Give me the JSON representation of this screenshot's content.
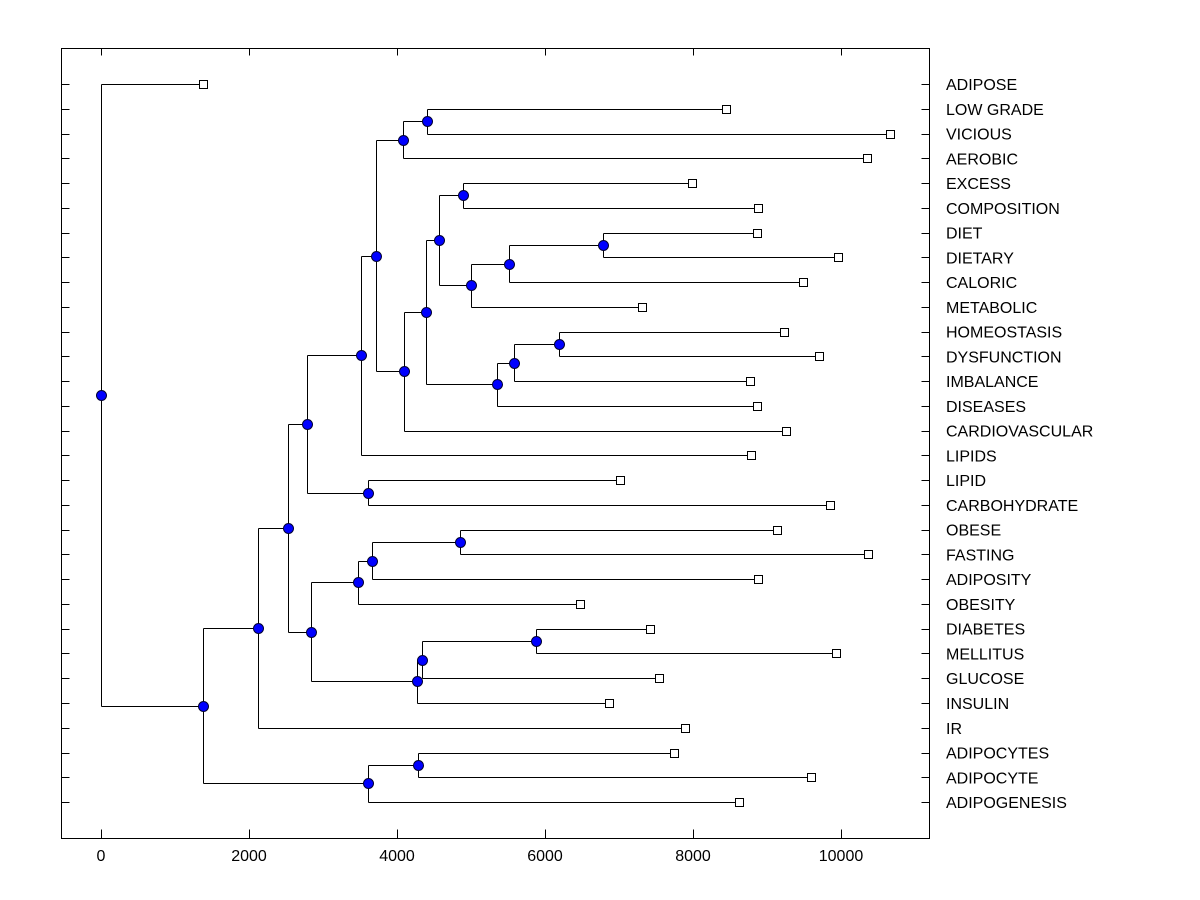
{
  "chart_data": {
    "type": "dendrogram",
    "title": "",
    "xlabel": "",
    "ylabel": "",
    "xlim": [
      -550,
      11300
    ],
    "x_ticks": [
      0,
      2000,
      4000,
      6000,
      8000,
      10000
    ],
    "x_tick_labels": [
      "0",
      "2000",
      "4000",
      "6000",
      "8000",
      "10000"
    ],
    "grid": false,
    "legend": "none",
    "colors": {
      "node_fill": "#0000ff",
      "node_stroke": "#000033",
      "leaf_fill": "#ffffff",
      "line": "#000000"
    },
    "leaves": [
      {
        "id": "ADIPOSE",
        "label": "ADIPOSE",
        "value": 1378
      },
      {
        "id": "LOW GRADE",
        "label": "LOW GRADE",
        "value": 8446
      },
      {
        "id": "VICIOUS",
        "label": "VICIOUS",
        "value": 10662
      },
      {
        "id": "AEROBIC",
        "label": "AEROBIC",
        "value": 10351
      },
      {
        "id": "EXCESS",
        "label": "EXCESS",
        "value": 7986
      },
      {
        "id": "COMPOSITION",
        "label": "COMPOSITION",
        "value": 8878
      },
      {
        "id": "DIET",
        "label": "DIET",
        "value": 8865
      },
      {
        "id": "DIETARY",
        "label": "DIETARY",
        "value": 9959
      },
      {
        "id": "CALORIC",
        "label": "CALORIC",
        "value": 9486
      },
      {
        "id": "METABOLIC",
        "label": "METABOLIC",
        "value": 7311
      },
      {
        "id": "HOMEOSTASIS",
        "label": "HOMEOSTASIS",
        "value": 9230
      },
      {
        "id": "DYSFUNCTION",
        "label": "DYSFUNCTION",
        "value": 9703
      },
      {
        "id": "IMBALANCE",
        "label": "IMBALANCE",
        "value": 8770
      },
      {
        "id": "DISEASES",
        "label": "DISEASES",
        "value": 8865
      },
      {
        "id": "CARDIOVASCULAR",
        "label": "CARDIOVASCULAR",
        "value": 9257
      },
      {
        "id": "LIPIDS",
        "label": "LIPIDS",
        "value": 8784
      },
      {
        "id": "LIPID",
        "label": "LIPID",
        "value": 7014
      },
      {
        "id": "CARBOHYDRATE",
        "label": "CARBOHYDRATE",
        "value": 9851
      },
      {
        "id": "OBESE",
        "label": "OBESE",
        "value": 9135
      },
      {
        "id": "FASTING",
        "label": "FASTING",
        "value": 10365
      },
      {
        "id": "ADIPOSITY",
        "label": "ADIPOSITY",
        "value": 8878
      },
      {
        "id": "OBESITY",
        "label": "OBESITY",
        "value": 6473
      },
      {
        "id": "DIABETES",
        "label": "DIABETES",
        "value": 7419
      },
      {
        "id": "MELLITUS",
        "label": "MELLITUS",
        "value": 9932
      },
      {
        "id": "GLUCOSE",
        "label": "GLUCOSE",
        "value": 7541
      },
      {
        "id": "INSULIN",
        "label": "INSULIN",
        "value": 6865
      },
      {
        "id": "IR",
        "label": "IR",
        "value": 7892
      },
      {
        "id": "ADIPOCYTES",
        "label": "ADIPOCYTES",
        "value": 7743
      },
      {
        "id": "ADIPOCYTE",
        "label": "ADIPOCYTE",
        "value": 9595
      },
      {
        "id": "ADIPOGENESIS",
        "label": "ADIPOGENESIS",
        "value": 8622
      }
    ],
    "merges": [
      {
        "id": "n1",
        "children": [
          "LOW GRADE",
          "VICIOUS"
        ],
        "value": 4405
      },
      {
        "id": "n2",
        "children": [
          "n1",
          "AEROBIC"
        ],
        "value": 4081
      },
      {
        "id": "n3",
        "children": [
          "EXCESS",
          "COMPOSITION"
        ],
        "value": 4892
      },
      {
        "id": "n4",
        "children": [
          "DIET",
          "DIETARY"
        ],
        "value": 6784
      },
      {
        "id": "n5",
        "children": [
          "n4",
          "CALORIC"
        ],
        "value": 5514
      },
      {
        "id": "n6",
        "children": [
          "n5",
          "METABOLIC"
        ],
        "value": 5000
      },
      {
        "id": "n7",
        "children": [
          "n3",
          "n6"
        ],
        "value": 4568
      },
      {
        "id": "n8",
        "children": [
          "HOMEOSTASIS",
          "DYSFUNCTION"
        ],
        "value": 6189
      },
      {
        "id": "n9",
        "children": [
          "n8",
          "IMBALANCE"
        ],
        "value": 5581
      },
      {
        "id": "n10",
        "children": [
          "n9",
          "DISEASES"
        ],
        "value": 5351
      },
      {
        "id": "n11",
        "children": [
          "n7",
          "n10"
        ],
        "value": 4392
      },
      {
        "id": "n12",
        "children": [
          "n11",
          "CARDIOVASCULAR"
        ],
        "value": 4095
      },
      {
        "id": "n13",
        "children": [
          "n2",
          "n12"
        ],
        "value": 3716
      },
      {
        "id": "n14",
        "children": [
          "n13",
          "LIPIDS"
        ],
        "value": 3514
      },
      {
        "id": "n15",
        "children": [
          "LIPID",
          "CARBOHYDRATE"
        ],
        "value": 3608
      },
      {
        "id": "n16",
        "children": [
          "n14",
          "n15"
        ],
        "value": 2784
      },
      {
        "id": "n17",
        "children": [
          "OBESE",
          "FASTING"
        ],
        "value": 4851
      },
      {
        "id": "n18",
        "children": [
          "n17",
          "ADIPOSITY"
        ],
        "value": 3662
      },
      {
        "id": "n19",
        "children": [
          "n18",
          "OBESITY"
        ],
        "value": 3473
      },
      {
        "id": "n20",
        "children": [
          "DIABETES",
          "MELLITUS"
        ],
        "value": 5878
      },
      {
        "id": "n21",
        "children": [
          "n20",
          "GLUCOSE"
        ],
        "value": 4338
      },
      {
        "id": "n22",
        "children": [
          "n21",
          "INSULIN"
        ],
        "value": 4270
      },
      {
        "id": "n23",
        "children": [
          "n19",
          "n22"
        ],
        "value": 2838
      },
      {
        "id": "n24",
        "children": [
          "n16",
          "n23"
        ],
        "value": 2527
      },
      {
        "id": "n25",
        "children": [
          "n24",
          "IR"
        ],
        "value": 2122
      },
      {
        "id": "n26",
        "children": [
          "ADIPOCYTES",
          "ADIPOCYTE"
        ],
        "value": 4284
      },
      {
        "id": "n27",
        "children": [
          "n26",
          "ADIPOGENESIS"
        ],
        "value": 3608
      },
      {
        "id": "n28",
        "children": [
          "n25",
          "n27"
        ],
        "value": 1378
      },
      {
        "id": "root",
        "children": [
          "ADIPOSE",
          "n28"
        ],
        "value": 0
      }
    ]
  }
}
